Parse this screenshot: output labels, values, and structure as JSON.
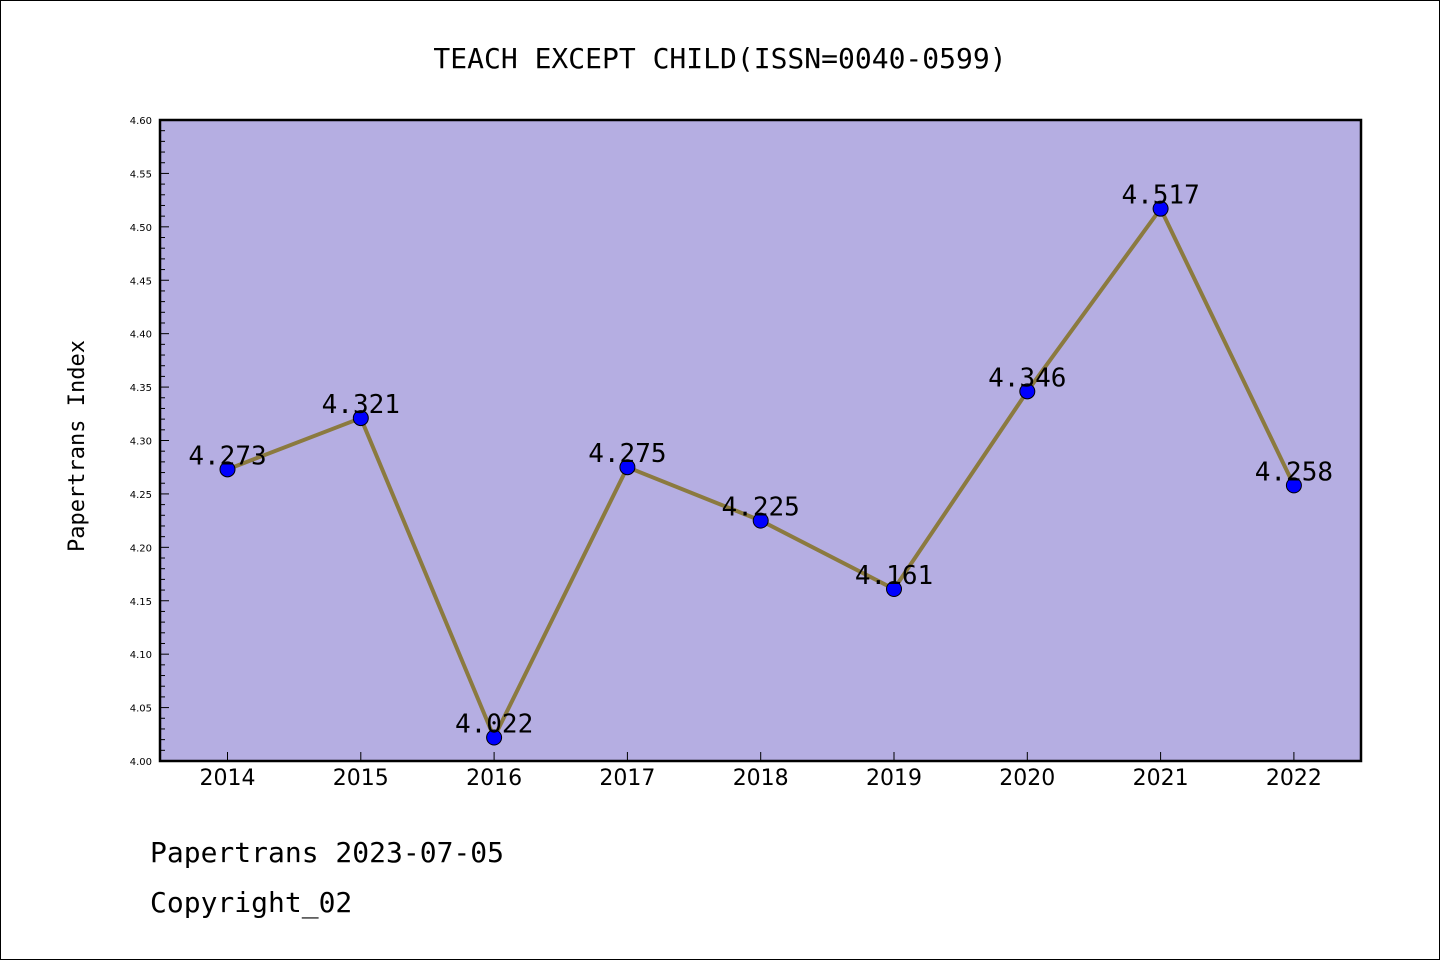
{
  "chart_data": {
    "type": "line",
    "title": "TEACH EXCEPT CHILD(ISSN=0040-0599)",
    "ylabel": "Papertrans Index",
    "xlabel": "",
    "categories": [
      "2014",
      "2015",
      "2016",
      "2017",
      "2018",
      "2019",
      "2020",
      "2021",
      "2022"
    ],
    "values": [
      4.273,
      4.321,
      4.022,
      4.275,
      4.225,
      4.161,
      4.346,
      4.517,
      4.258
    ],
    "data_labels": [
      "4.273",
      "4.321",
      "4.022",
      "4.275",
      "4.225",
      "4.161",
      "4.346",
      "4.517",
      "4.258"
    ],
    "ylim": [
      4.0,
      4.6
    ],
    "y_ticks": [
      "4.00",
      "4.05",
      "4.10",
      "4.15",
      "4.20",
      "4.25",
      "4.30",
      "4.35",
      "4.40",
      "4.45",
      "4.50",
      "4.55",
      "4.60"
    ],
    "grid": false,
    "colors": {
      "plot_background": "#b5aee2",
      "line": "#8b7a3f",
      "marker": "#0000ff"
    }
  },
  "footer": {
    "date_line": "Papertrans 2023-07-05",
    "copyright": "Copyright_02"
  }
}
